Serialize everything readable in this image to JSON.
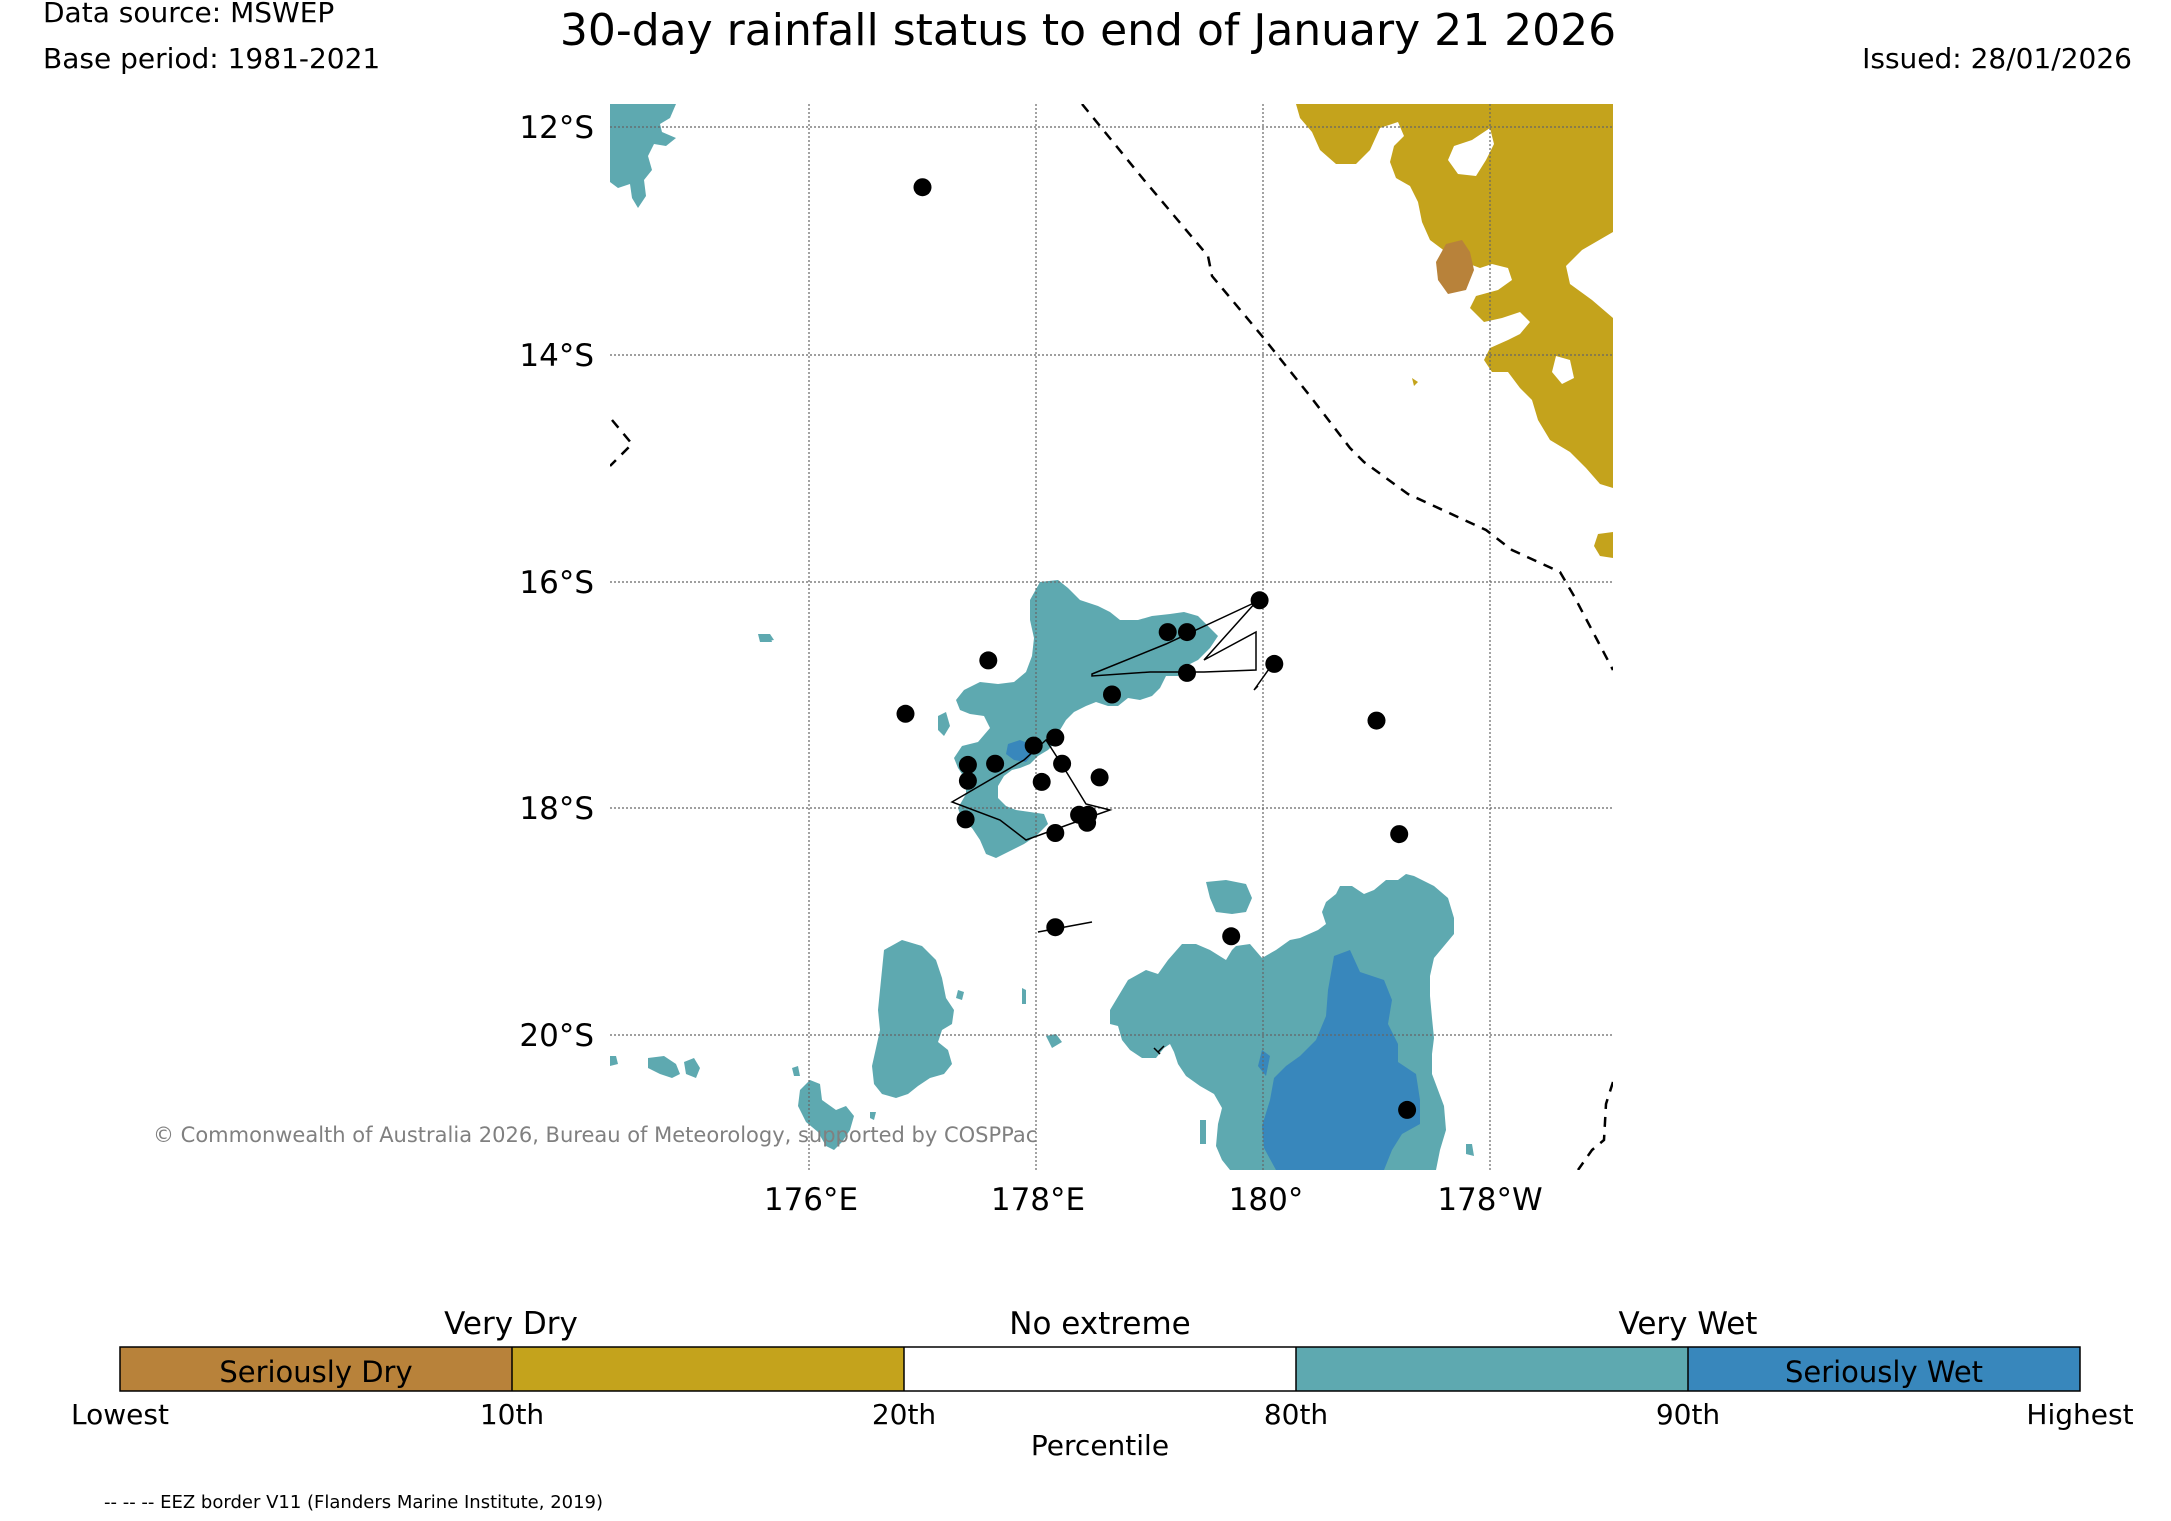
{
  "header": {
    "data_source": "Data source: MSWEP",
    "base_period": "Base period: 1981-2021",
    "title": "30-day rainfall status to end of January 21 2026",
    "issued": "Issued: 28/01/2026"
  },
  "map": {
    "lat_labels": [
      "12°S",
      "14°S",
      "16°S",
      "18°S",
      "20°S"
    ],
    "lon_labels": [
      "176°E",
      "178°E",
      "180°",
      "178°W"
    ],
    "copyright": "© Commonwealth of Australia 2026, Bureau of Meteorology, supported by COSPPac",
    "stations": [
      {
        "lon": 177.0,
        "lat": -12.53
      },
      {
        "lon": 176.85,
        "lat": -17.17
      },
      {
        "lon": 177.58,
        "lat": -16.7
      },
      {
        "lon": 177.4,
        "lat": -17.62
      },
      {
        "lon": 177.4,
        "lat": -17.76
      },
      {
        "lon": 177.64,
        "lat": -17.61
      },
      {
        "lon": 177.98,
        "lat": -17.45
      },
      {
        "lon": 178.17,
        "lat": -17.38
      },
      {
        "lon": 178.05,
        "lat": -17.77
      },
      {
        "lon": 178.23,
        "lat": -17.61
      },
      {
        "lon": 178.56,
        "lat": -17.73
      },
      {
        "lon": 178.67,
        "lat": -17.0
      },
      {
        "lon": 177.38,
        "lat": -18.1
      },
      {
        "lon": 178.17,
        "lat": -18.22
      },
      {
        "lon": 178.38,
        "lat": -18.06
      },
      {
        "lon": 178.46,
        "lat": -18.06
      },
      {
        "lon": 178.45,
        "lat": -18.13
      },
      {
        "lon": 179.16,
        "lat": -16.45
      },
      {
        "lon": 179.33,
        "lat": -16.45
      },
      {
        "lon": 179.33,
        "lat": -16.81
      },
      {
        "lon": 179.97,
        "lat": -16.17
      },
      {
        "lon": 180.1,
        "lat": -16.73
      },
      {
        "lon": 181.0,
        "lat": -17.23
      },
      {
        "lon": 181.2,
        "lat": -18.23
      },
      {
        "lon": 178.17,
        "lat": -19.05
      },
      {
        "lon": 179.72,
        "lat": -19.13
      },
      {
        "lon": 181.27,
        "lat": -20.66
      }
    ]
  },
  "legend": {
    "group_labels": [
      "Very Dry",
      "No extreme",
      "Very Wet"
    ],
    "bins": [
      {
        "label": "Seriously Dry",
        "color": "#b8823a"
      },
      {
        "label": "",
        "color": "#c4a31c"
      },
      {
        "label": "",
        "color": "#ffffff"
      },
      {
        "label": "",
        "color": "#5ea9b0"
      },
      {
        "label": "Seriously Wet",
        "color": "#3887bc"
      }
    ],
    "tick_labels": [
      "Lowest",
      "10th",
      "20th",
      "80th",
      "90th",
      "Highest"
    ],
    "axis_label": "Percentile"
  },
  "colors": {
    "seriously_dry": "#b8823a",
    "very_dry": "#c4a31c",
    "very_wet": "#5ea9b0",
    "seriously_wet": "#3887bc",
    "station": "#000000"
  },
  "footnote": "-- -- -- EEZ border V11 (Flanders Marine Institute, 2019)"
}
